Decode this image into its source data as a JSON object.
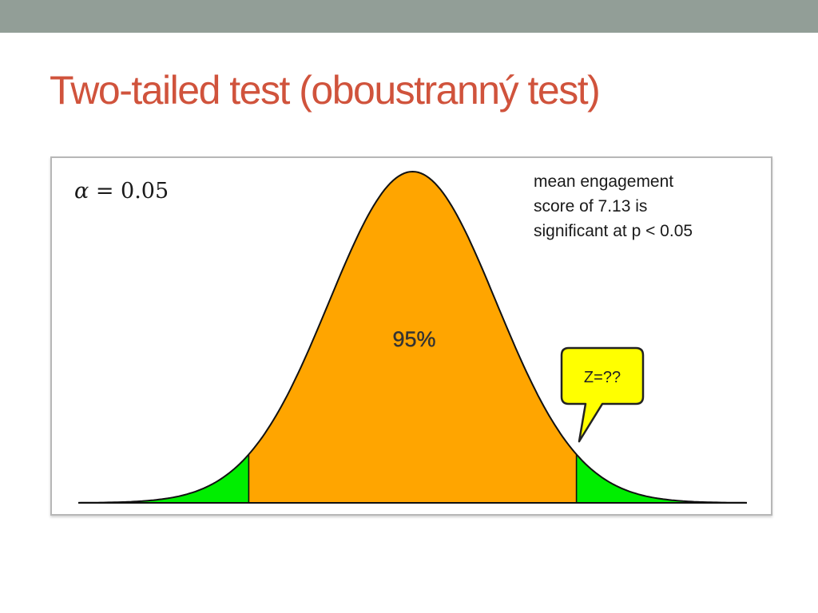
{
  "slide": {
    "title": "Two-tailed test (oboustranný test)"
  },
  "figure": {
    "alpha_symbol": "α",
    "alpha_value": "= 0.05",
    "note_lines": [
      "mean engagement",
      "score of 7.13 is",
      "significant at p < 0.05"
    ],
    "center_area_label": "95%",
    "callout_text": "Z=??",
    "colors": {
      "title": "#d0533c",
      "top_bar": "#929e97",
      "center_fill": "#ffa500",
      "tail_fill": "#00ee00",
      "callout_fill": "#ffff00"
    }
  },
  "chart_data": {
    "type": "area",
    "distribution": "standard normal",
    "two_tailed_alpha": 0.05,
    "center_area_percent": 95,
    "tail_area_each": 0.025,
    "critical_z": [
      -1.96,
      1.96
    ],
    "z_range": [
      -4,
      4
    ],
    "annotations": [
      "95%",
      "Z=??"
    ]
  }
}
